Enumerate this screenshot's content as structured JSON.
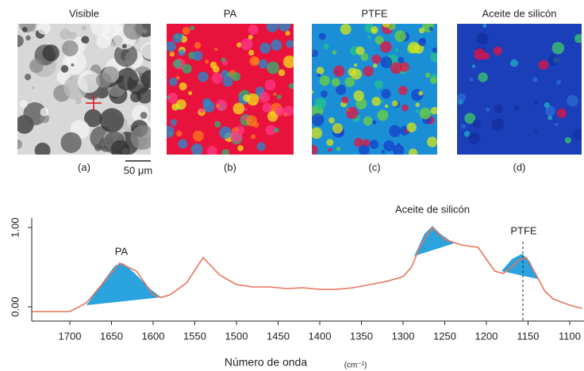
{
  "panels": [
    {
      "title": "Visible",
      "label": "(a)"
    },
    {
      "title": "PA",
      "label": "(b)"
    },
    {
      "title": "PTFE",
      "label": "(c)"
    },
    {
      "title": "Aceite de silicón",
      "label": "(d)"
    }
  ],
  "scale_bar": "50 μm",
  "chart_data": {
    "type": "line",
    "annotations": [
      "PA",
      "Aceite de silicón",
      "PTFE"
    ],
    "xlabel": "Número de onda",
    "xunit": "(cm⁻¹)",
    "x": [
      1745,
      1700,
      1680,
      1660,
      1640,
      1620,
      1600,
      1590,
      1580,
      1560,
      1540,
      1520,
      1500,
      1480,
      1460,
      1440,
      1420,
      1400,
      1380,
      1360,
      1340,
      1320,
      1300,
      1290,
      1280,
      1265,
      1250,
      1230,
      1210,
      1200,
      1190,
      1180,
      1170,
      1160,
      1152,
      1140,
      1130,
      1120,
      1100,
      1085
    ],
    "series": [
      {
        "color": "#e8735a",
        "values": [
          -0.06,
          -0.06,
          0.05,
          0.3,
          0.55,
          0.45,
          0.15,
          0.12,
          0.15,
          0.3,
          0.62,
          0.4,
          0.28,
          0.25,
          0.25,
          0.23,
          0.24,
          0.22,
          0.22,
          0.24,
          0.28,
          0.32,
          0.38,
          0.5,
          0.75,
          1.0,
          0.85,
          0.78,
          0.75,
          0.6,
          0.45,
          0.42,
          0.5,
          0.6,
          0.62,
          0.4,
          0.2,
          0.1,
          0.02,
          -0.02
        ]
      }
    ],
    "xlim": [
      1745,
      1085
    ],
    "ylim": [
      -0.18,
      1.12
    ],
    "xticks": [
      1700,
      1650,
      1600,
      1550,
      1500,
      1450,
      1400,
      1350,
      1300,
      1250,
      1200,
      1150,
      1100
    ],
    "yticks": [
      {
        "value": 0,
        "label": "0.00"
      },
      {
        "value": 1,
        "label": "1.00"
      }
    ]
  }
}
